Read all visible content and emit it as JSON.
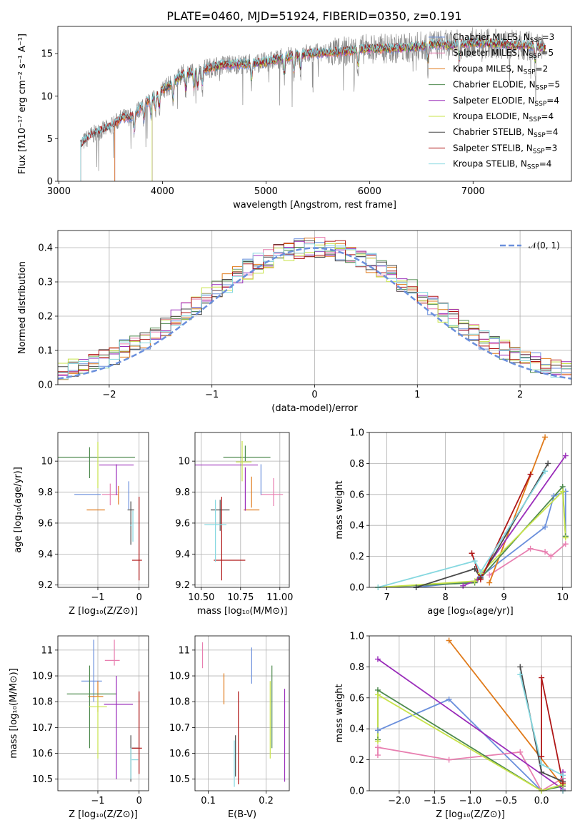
{
  "palette": {
    "Chabrier MILES": "#6a8fdc",
    "Salpeter MILES": "#e87fb0",
    "Kroupa MILES": "#e07a1a",
    "Chabrier ELODIE": "#4e8a4e",
    "Salpeter ELODIE": "#9a2dba",
    "Kroupa ELODIE": "#c8e34a",
    "Chabrier STELIB": "#4a4a4a",
    "Salpeter STELIB": "#b01818",
    "Kroupa STELIB": "#86d8e0",
    "data": "#8c8c8c"
  },
  "chart_data": [
    {
      "id": "spectrum",
      "type": "line",
      "title": "PLATE=0460, MJD=51924, FIBERID=0350, z=0.191",
      "xlabel": "wavelength [Angstrom, rest frame]",
      "ylabel": "Flux [fλ10⁻¹⁷ erg cm⁻² s⁻¹ A⁻¹]",
      "xlim": [
        2990,
        7950
      ],
      "ylim": [
        0,
        18.2
      ],
      "xticks": [
        3000,
        4000,
        5000,
        6000,
        7000
      ],
      "yticks": [
        0,
        5,
        10,
        15
      ],
      "grid": false,
      "legend_position": "right",
      "legend": [
        {
          "name": "Chabrier MILES",
          "nssp": "3"
        },
        {
          "name": "Salpeter MILES",
          "nssp": "5"
        },
        {
          "name": "Kroupa MILES",
          "nssp": "2"
        },
        {
          "name": "Chabrier ELODIE",
          "nssp": "5"
        },
        {
          "name": "Salpeter ELODIE",
          "nssp": "4"
        },
        {
          "name": "Kroupa ELODIE",
          "nssp": "4"
        },
        {
          "name": "Chabrier STELIB",
          "nssp": "4"
        },
        {
          "name": "Salpeter STELIB",
          "nssp": "3"
        },
        {
          "name": "Kroupa STELIB",
          "nssp": "4"
        }
      ],
      "continuum": {
        "x": [
          3210,
          3300,
          3400,
          3500,
          3600,
          3700,
          3800,
          3900,
          4000,
          4100,
          4200,
          4300,
          4400,
          4600,
          4800,
          5000,
          5200,
          5400,
          5600,
          5800,
          6000,
          6200,
          6400,
          6600,
          6800,
          7000,
          7200,
          7400,
          7600,
          7700
        ],
        "y": [
          4.3,
          5.3,
          5.9,
          6.4,
          7.4,
          7.6,
          8.8,
          9.8,
          10.8,
          11.5,
          12.6,
          12.9,
          13.2,
          13.7,
          13.8,
          14.0,
          14.6,
          15.0,
          15.1,
          15.3,
          15.6,
          15.6,
          15.7,
          16.1,
          16.0,
          16.3,
          16.2,
          16.0,
          15.9,
          15.6
        ]
      },
      "model_start_wavelength": {
        "Chabrier MILES": 3540,
        "Salpeter MILES": 3540,
        "Kroupa MILES": 3540,
        "Chabrier ELODIE": 3900,
        "Salpeter ELODIE": 3900,
        "Kroupa ELODIE": 3900,
        "Chabrier STELIB": 3210,
        "Salpeter STELIB": 3210,
        "Kroupa STELIB": 3210
      }
    },
    {
      "id": "residual_hist",
      "type": "step",
      "xlabel": "(data-model)/error",
      "ylabel": "Normed distribution",
      "xlim": [
        -2.5,
        2.5
      ],
      "ylim": [
        0,
        0.45
      ],
      "xticks": [
        -2,
        -1,
        0,
        1,
        2
      ],
      "yticks": [
        0.0,
        0.1,
        0.2,
        0.3,
        0.4
      ],
      "grid": true,
      "legend_position": "top-right",
      "legend": [
        {
          "name": "𝒩(0, 1)",
          "style": "dashed",
          "color": "#6a8fdc"
        }
      ],
      "bin_width": 0.1,
      "gaussian": {
        "mean": 0,
        "sigma": 1
      }
    },
    {
      "id": "age_vs_Z",
      "type": "errorbar",
      "xlabel": "Z [log₁₀(Z/Z⊙)]",
      "ylabel": "age  [log₁₀(age/yr)]",
      "xlim": [
        -1.97,
        0.23
      ],
      "ylim": [
        9.185,
        10.185
      ],
      "xticks": [
        -1,
        0
      ],
      "yticks": [
        9.2,
        9.4,
        9.6,
        9.8,
        10.0
      ],
      "grid": true,
      "points": [
        {
          "m": "Chabrier MILES",
          "x": -1.25,
          "xerr": 0.32,
          "y": 9.785,
          "yerr": 0.0
        },
        {
          "m": "Chabrier MILES",
          "x": -0.25,
          "xerr": 0.0,
          "y": 9.78,
          "yerr": 0.09
        },
        {
          "m": "Salpeter MILES",
          "x": -0.7,
          "xerr": 0.2,
          "y": 9.785,
          "yerr": 0.07
        },
        {
          "m": "Kroupa MILES",
          "x": -1.05,
          "xerr": 0.22,
          "y": 9.685,
          "yerr": 0.0
        },
        {
          "m": "Kroupa MILES",
          "x": -0.5,
          "xerr": 0.0,
          "y": 9.78,
          "yerr": 0.06
        },
        {
          "m": "Chabrier ELODIE",
          "x": -1.05,
          "xerr": 0.95,
          "y": 10.025,
          "yerr": 0.0
        },
        {
          "m": "Chabrier ELODIE",
          "x": -1.2,
          "xerr": 0.0,
          "y": 9.99,
          "yerr": 0.1
        },
        {
          "m": "Salpeter ELODIE",
          "x": -0.55,
          "xerr": 0.42,
          "y": 9.975,
          "yerr": 0.0
        },
        {
          "m": "Salpeter ELODIE",
          "x": -0.55,
          "xerr": 0.0,
          "y": 9.88,
          "yerr": 0.1
        },
        {
          "m": "Kroupa ELODIE",
          "x": -1.0,
          "xerr": 0.0,
          "y": 9.975,
          "yerr": 0.15
        },
        {
          "m": "Chabrier STELIB",
          "x": -0.2,
          "xerr": 0.08,
          "y": 9.685,
          "yerr": 0.0
        },
        {
          "m": "Chabrier STELIB",
          "x": -0.2,
          "xerr": 0.0,
          "y": 9.6,
          "yerr": 0.14
        },
        {
          "m": "Salpeter STELIB",
          "x": -0.05,
          "xerr": 0.12,
          "y": 9.36,
          "yerr": 0.0
        },
        {
          "m": "Salpeter STELIB",
          "x": 0.0,
          "xerr": 0.0,
          "y": 9.5,
          "yerr": 0.27
        },
        {
          "m": "Kroupa STELIB",
          "x": -0.2,
          "xerr": 0.02,
          "y": 9.585,
          "yerr": 0.0
        },
        {
          "m": "Kroupa STELIB",
          "x": -0.15,
          "xerr": 0.0,
          "y": 9.58,
          "yerr": 0.1
        }
      ]
    },
    {
      "id": "age_vs_mass",
      "type": "errorbar",
      "xlabel": "mass [log₁₀(M/M⊙)]",
      "xlim": [
        10.46,
        11.06
      ],
      "ylim": [
        9.185,
        10.185
      ],
      "xticks": [
        10.5,
        10.75,
        11.0
      ],
      "xticklabels": [
        "10.50",
        "10.75",
        "11.00"
      ],
      "yticks": [
        9.2,
        9.4,
        9.6,
        9.8,
        10.0
      ],
      "grid": true,
      "points": [
        {
          "m": "Chabrier MILES",
          "x": 10.88,
          "xerr": 0.0,
          "y": 9.88,
          "yerr": 0.1
        },
        {
          "m": "Salpeter MILES",
          "x": 10.95,
          "xerr": 0.07,
          "y": 9.785,
          "yerr": 0.0
        },
        {
          "m": "Salpeter MILES",
          "x": 10.96,
          "xerr": 0.0,
          "y": 9.8,
          "yerr": 0.09
        },
        {
          "m": "Kroupa MILES",
          "x": 10.82,
          "xerr": 0.05,
          "y": 9.685,
          "yerr": 0.0
        },
        {
          "m": "Kroupa MILES",
          "x": 10.82,
          "xerr": 0.0,
          "y": 9.8,
          "yerr": 0.1
        },
        {
          "m": "Chabrier ELODIE",
          "x": 10.79,
          "xerr": 0.15,
          "y": 10.025,
          "yerr": 0.0
        },
        {
          "m": "Chabrier ELODIE",
          "x": 10.78,
          "xerr": 0.0,
          "y": 10.05,
          "yerr": 0.05
        },
        {
          "m": "Salpeter ELODIE",
          "x": 10.66,
          "xerr": 0.2,
          "y": 9.975,
          "yerr": 0.0
        },
        {
          "m": "Salpeter ELODIE",
          "x": 10.78,
          "xerr": 0.0,
          "y": 9.82,
          "yerr": 0.14
        },
        {
          "m": "Kroupa ELODIE",
          "x": 10.77,
          "xerr": 0.05,
          "y": 9.995,
          "yerr": 0.0
        },
        {
          "m": "Kroupa ELODIE",
          "x": 10.76,
          "xerr": 0.0,
          "y": 10.0,
          "yerr": 0.13
        },
        {
          "m": "Chabrier STELIB",
          "x": 10.62,
          "xerr": 0.06,
          "y": 9.685,
          "yerr": 0.0
        },
        {
          "m": "Chabrier STELIB",
          "x": 10.62,
          "xerr": 0.0,
          "y": 9.65,
          "yerr": 0.1
        },
        {
          "m": "Salpeter STELIB",
          "x": 10.68,
          "xerr": 0.1,
          "y": 9.36,
          "yerr": 0.0
        },
        {
          "m": "Salpeter STELIB",
          "x": 10.63,
          "xerr": 0.0,
          "y": 9.5,
          "yerr": 0.27
        },
        {
          "m": "Kroupa STELIB",
          "x": 10.59,
          "xerr": 0.07,
          "y": 9.59,
          "yerr": 0.0
        },
        {
          "m": "Kroupa STELIB",
          "x": 10.59,
          "xerr": 0.0,
          "y": 9.55,
          "yerr": 0.2
        }
      ]
    },
    {
      "id": "weight_vs_age",
      "type": "line",
      "xlabel": "age  [log₁₀(age/yr)]",
      "ylabel": "mass weight",
      "xlim": [
        6.7,
        10.15
      ],
      "ylim": [
        0,
        1.0
      ],
      "xticks": [
        7,
        8,
        9,
        10
      ],
      "yticks": [
        0.0,
        0.2,
        0.4,
        0.6,
        0.8,
        1.0
      ],
      "grid": true,
      "series": [
        {
          "m": "Chabrier MILES",
          "x": [
            7.5,
            8.5,
            8.6,
            9.7,
            9.85,
            10.05,
            10.05
          ],
          "y": [
            0.0,
            0.04,
            0.07,
            0.39,
            0.59,
            0.62,
            0.33
          ]
        },
        {
          "m": "Salpeter MILES",
          "x": [
            8.75,
            9.45,
            9.7,
            9.8,
            10.05
          ],
          "y": [
            0.08,
            0.25,
            0.23,
            0.2,
            0.28
          ]
        },
        {
          "m": "Kroupa MILES",
          "x": [
            8.75,
            9.7
          ],
          "y": [
            0.03,
            0.97
          ]
        },
        {
          "m": "Chabrier ELODIE",
          "x": [
            6.85,
            8.5,
            8.6,
            10.0,
            10.05
          ],
          "y": [
            0.0,
            0.03,
            0.06,
            0.65,
            0.33
          ]
        },
        {
          "m": "Salpeter ELODIE",
          "x": [
            8.3,
            8.55,
            10.05
          ],
          "y": [
            0.01,
            0.05,
            0.85
          ]
        },
        {
          "m": "Kroupa ELODIE",
          "x": [
            6.85,
            8.5,
            8.6,
            10.0,
            10.05
          ],
          "y": [
            0.0,
            0.04,
            0.09,
            0.62,
            0.32
          ]
        },
        {
          "m": "Chabrier STELIB",
          "x": [
            7.5,
            8.5,
            8.6,
            9.75
          ],
          "y": [
            0.0,
            0.12,
            0.06,
            0.8
          ]
        },
        {
          "m": "Salpeter STELIB",
          "x": [
            8.45,
            8.6,
            9.45
          ],
          "y": [
            0.22,
            0.05,
            0.73
          ]
        },
        {
          "m": "Kroupa STELIB",
          "x": [
            6.85,
            8.5,
            8.6,
            9.7
          ],
          "y": [
            0.0,
            0.17,
            0.1,
            0.75
          ]
        }
      ]
    },
    {
      "id": "mass_vs_Z",
      "type": "errorbar",
      "xlabel": "Z [log₁₀(Z/Z⊙)]",
      "ylabel": "mass [log₁₀(M/M⊙)]",
      "xlim": [
        -1.97,
        0.23
      ],
      "ylim": [
        10.455,
        11.055
      ],
      "xticks": [
        -1,
        0
      ],
      "yticks": [
        10.5,
        10.6,
        10.7,
        10.8,
        10.9,
        11.0
      ],
      "grid": true,
      "points": [
        {
          "m": "Chabrier MILES",
          "x": -1.15,
          "xerr": 0.25,
          "y": 10.88,
          "yerr": 0.0
        },
        {
          "m": "Chabrier MILES",
          "x": -1.1,
          "xerr": 0.0,
          "y": 10.92,
          "yerr": 0.12
        },
        {
          "m": "Salpeter MILES",
          "x": -0.65,
          "xerr": 0.18,
          "y": 10.96,
          "yerr": 0.0
        },
        {
          "m": "Salpeter MILES",
          "x": -0.6,
          "xerr": 0.0,
          "y": 10.99,
          "yerr": 0.05
        },
        {
          "m": "Kroupa MILES",
          "x": -1.05,
          "xerr": 0.18,
          "y": 10.82,
          "yerr": 0.0
        },
        {
          "m": "Kroupa MILES",
          "x": -1.0,
          "xerr": 0.0,
          "y": 10.82,
          "yerr": 0.06
        },
        {
          "m": "Chabrier ELODIE",
          "x": -1.15,
          "xerr": 0.6,
          "y": 10.83,
          "yerr": 0.0
        },
        {
          "m": "Chabrier ELODIE",
          "x": -1.2,
          "xerr": 0.0,
          "y": 10.78,
          "yerr": 0.16
        },
        {
          "m": "Salpeter ELODIE",
          "x": -0.5,
          "xerr": 0.35,
          "y": 10.79,
          "yerr": 0.0
        },
        {
          "m": "Salpeter ELODIE",
          "x": -0.55,
          "xerr": 0.0,
          "y": 10.7,
          "yerr": 0.2
        },
        {
          "m": "Kroupa ELODIE",
          "x": -1.0,
          "xerr": 0.22,
          "y": 10.78,
          "yerr": 0.0
        },
        {
          "m": "Kroupa ELODIE",
          "x": -1.0,
          "xerr": 0.0,
          "y": 10.7,
          "yerr": 0.12
        },
        {
          "m": "Chabrier STELIB",
          "x": -0.1,
          "xerr": 0.08,
          "y": 10.62,
          "yerr": 0.0
        },
        {
          "m": "Chabrier STELIB",
          "x": -0.2,
          "xerr": 0.0,
          "y": 10.58,
          "yerr": 0.09
        },
        {
          "m": "Salpeter STELIB",
          "x": -0.05,
          "xerr": 0.12,
          "y": 10.62,
          "yerr": 0.0
        },
        {
          "m": "Salpeter STELIB",
          "x": 0.0,
          "xerr": 0.0,
          "y": 10.68,
          "yerr": 0.16
        },
        {
          "m": "Kroupa STELIB",
          "x": -0.1,
          "xerr": 0.08,
          "y": 10.575,
          "yerr": 0.0
        },
        {
          "m": "Kroupa STELIB",
          "x": -0.2,
          "xerr": 0.0,
          "y": 10.56,
          "yerr": 0.06
        }
      ]
    },
    {
      "id": "mass_vs_ebv",
      "type": "errorbar",
      "xlabel": "E(B-V)",
      "xlim": [
        0.077,
        0.24
      ],
      "ylim": [
        10.455,
        11.055
      ],
      "xticks": [
        0.1,
        0.2
      ],
      "yticks": [
        10.5,
        10.6,
        10.7,
        10.8,
        10.9,
        11.0
      ],
      "grid": true,
      "points": [
        {
          "m": "Chabrier MILES",
          "x": 0.175,
          "xerr": 0.0,
          "y": 10.94,
          "yerr": 0.07
        },
        {
          "m": "Salpeter MILES",
          "x": 0.09,
          "xerr": 0.0,
          "y": 10.98,
          "yerr": 0.05
        },
        {
          "m": "Kroupa MILES",
          "x": 0.127,
          "xerr": 0.0,
          "y": 10.85,
          "yerr": 0.06
        },
        {
          "m": "Chabrier ELODIE",
          "x": 0.21,
          "xerr": 0.0,
          "y": 10.78,
          "yerr": 0.16
        },
        {
          "m": "Salpeter ELODIE",
          "x": 0.232,
          "xerr": 0.0,
          "y": 10.67,
          "yerr": 0.18
        },
        {
          "m": "Kroupa ELODIE",
          "x": 0.207,
          "xerr": 0.0,
          "y": 10.73,
          "yerr": 0.15
        },
        {
          "m": "Chabrier STELIB",
          "x": 0.147,
          "xerr": 0.0,
          "y": 10.59,
          "yerr": 0.08
        },
        {
          "m": "Salpeter STELIB",
          "x": 0.152,
          "xerr": 0.0,
          "y": 10.66,
          "yerr": 0.18
        },
        {
          "m": "Kroupa STELIB",
          "x": 0.145,
          "xerr": 0.0,
          "y": 10.56,
          "yerr": 0.09
        }
      ]
    },
    {
      "id": "weight_vs_Z",
      "type": "line",
      "xlabel": "Z [log₁₀(Z/Z⊙)]",
      "ylabel": "mass weight",
      "xlim": [
        -2.42,
        0.42
      ],
      "ylim": [
        0,
        1.0
      ],
      "xticks": [
        -2.0,
        -1.5,
        -1.0,
        -0.5,
        0.0
      ],
      "xticklabels": [
        "−2.0",
        "−1.5",
        "−1.0",
        "−0.5",
        "0.0"
      ],
      "yticks": [
        0.0,
        0.2,
        0.4,
        0.6,
        0.8,
        1.0
      ],
      "grid": true,
      "series": [
        {
          "m": "Chabrier MILES",
          "x": [
            -2.3,
            -1.3,
            0.0,
            0.3
          ],
          "y": [
            0.39,
            0.59,
            0.0,
            0.04
          ]
        },
        {
          "m": "Salpeter MILES",
          "x": [
            -2.3,
            -2.3,
            -1.3,
            -0.3,
            0.0,
            0.3
          ],
          "y": [
            0.23,
            0.28,
            0.2,
            0.25,
            0.0,
            0.08
          ]
        },
        {
          "m": "Kroupa MILES",
          "x": [
            -1.3,
            0.3
          ],
          "y": [
            0.97,
            0.03
          ]
        },
        {
          "m": "Chabrier ELODIE",
          "x": [
            -2.3,
            -2.3,
            0.0,
            0.3
          ],
          "y": [
            0.33,
            0.65,
            0.0,
            0.03
          ]
        },
        {
          "m": "Salpeter ELODIE",
          "x": [
            -2.3,
            0.3,
            0.3
          ],
          "y": [
            0.85,
            0.01,
            0.12
          ]
        },
        {
          "m": "Kroupa ELODIE",
          "x": [
            -2.3,
            -2.3,
            0.0,
            0.3
          ],
          "y": [
            0.32,
            0.62,
            0.0,
            0.04
          ]
        },
        {
          "m": "Chabrier STELIB",
          "x": [
            -0.3,
            0.0,
            0.3,
            0.3
          ],
          "y": [
            0.8,
            0.12,
            0.06,
            0.0
          ]
        },
        {
          "m": "Salpeter STELIB",
          "x": [
            0.0,
            0.0,
            0.3,
            0.3
          ],
          "y": [
            0.22,
            0.73,
            0.05,
            0.0
          ]
        },
        {
          "m": "Kroupa STELIB",
          "x": [
            -0.3,
            0.0,
            0.3,
            0.3
          ],
          "y": [
            0.75,
            0.17,
            0.1,
            0.0
          ]
        }
      ]
    }
  ]
}
